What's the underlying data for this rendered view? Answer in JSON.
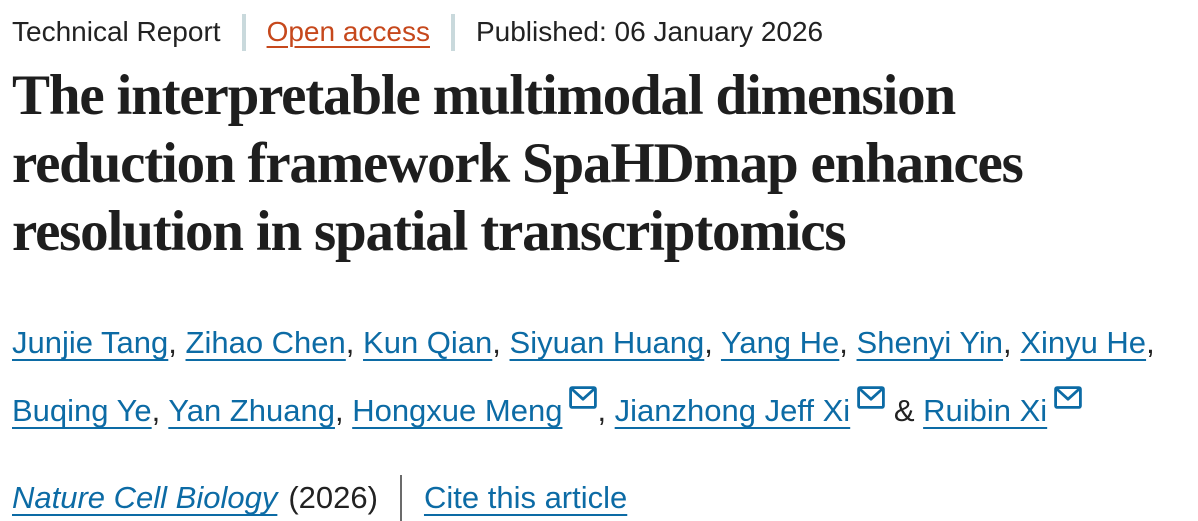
{
  "meta": {
    "article_type": "Technical Report",
    "open_access_label": "Open access",
    "published": "Published: 06 January 2026"
  },
  "title": {
    "full": "The interpretable multimodal dimension reduction framework SpaHDmap enhances resolution in spatial transcriptomics",
    "lines": [
      "The interpretable multimodal dimension",
      "reduction framework SpaHDmap enhances",
      "resolution in spatial transcriptomics"
    ]
  },
  "authors": [
    {
      "name": "Junjie Tang",
      "email_icon": false
    },
    {
      "name": "Zihao Chen",
      "email_icon": false
    },
    {
      "name": "Kun Qian",
      "email_icon": false
    },
    {
      "name": "Siyuan Huang",
      "email_icon": false
    },
    {
      "name": "Yang He",
      "email_icon": false
    },
    {
      "name": "Shenyi Yin",
      "email_icon": false
    },
    {
      "name": "Xinyu He",
      "email_icon": false
    },
    {
      "name": "Buqing Ye",
      "email_icon": false
    },
    {
      "name": "Yan Zhuang",
      "email_icon": false
    },
    {
      "name": "Hongxue Meng",
      "email_icon": true
    },
    {
      "name": "Jianzhong Jeff Xi",
      "email_icon": true
    },
    {
      "name": "Ruibin Xi",
      "email_icon": true
    }
  ],
  "author_separator": ", ",
  "author_last_separator": " & ",
  "journal": {
    "name": "Nature Cell Biology",
    "year": "(2026)",
    "cite_label": "Cite this article"
  },
  "icons": {
    "email": "envelope-icon"
  },
  "colors": {
    "link_blue": "#0c6ba5",
    "open_access_orange": "#c6481c",
    "text_dark": "#222222",
    "title_dark": "#1e1e1e",
    "divider_light": "#c9d9dc",
    "divider_dark": "#6b6b6b"
  }
}
